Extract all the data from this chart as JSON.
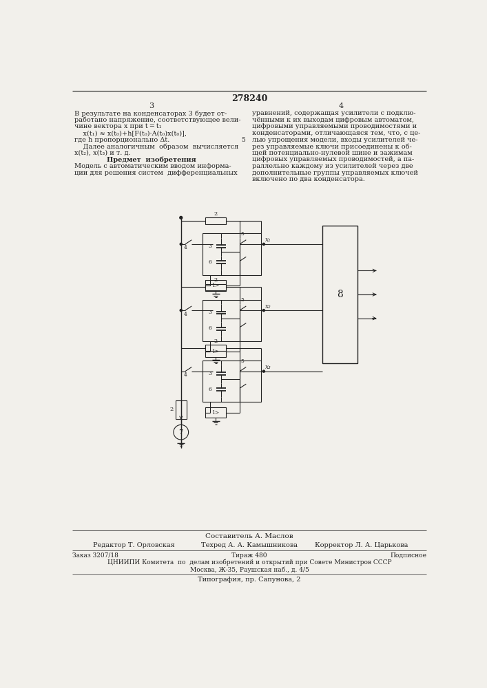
{
  "patent_number": "278240",
  "page_left": "3",
  "page_right": "4",
  "bg_color": "#f2f0eb",
  "text_color": "#1a1a1a",
  "left_column_text": [
    "В результате на конденсаторах 3 будет от-",
    "работано напряжение, соответствующее вели-",
    "чине вектора x при t = t₁",
    "    x(t₁) ≈ x(t₀)+h[F(t₀)·A(t₀)x(t₀)],",
    "где h пропорционально Δt.",
    "    Далее аналогичным  образом  вычисляется",
    "x(t₂), x(t₃) и т. д.",
    "    Предмет  изобретения",
    "Модель с автоматическим вводом информа-",
    "ции для решения систем  дифференциальных"
  ],
  "right_column_text": [
    "уравнений, содержащая усилители с подклю-",
    "чёнными к их выходам цифровым автоматом,",
    "цифровыми управляемыми проводимостями и",
    "конденсаторами, отличающаяся тем, что, с це-",
    "лью упрощения модели, входы усилителей че-",
    "рез управляемые ключи присоединены к об-",
    "щей потенциально-нулевой шине и зажимам",
    "цифровых управляемых проводимостей, а па-",
    "раллельно каждому из усилителей через две",
    "дополнительные группы управляемых ключей",
    "включено по два конденсатора."
  ],
  "footer_composer": "Составитель А. Маслов",
  "footer_editor": "Редактор Т. Орловская",
  "footer_tech": "Техред А. А. Камышникова",
  "footer_corrector": "Корректор Л. А. Царькова",
  "footer_order": "Заказ 3207/18",
  "footer_tirazh": "Тираж 480",
  "footer_podpisnoe": "Подписное",
  "footer_tsniipi": "ЦНИИПИ Комитета  по  делам изобретений и открытий при Совете Министров СССР",
  "footer_moskva": "Москва, Ж-35, Раушская наб., д. 4/5",
  "footer_tipografia": "Типография, пр. Сапунова, 2",
  "num_5_line": 4
}
